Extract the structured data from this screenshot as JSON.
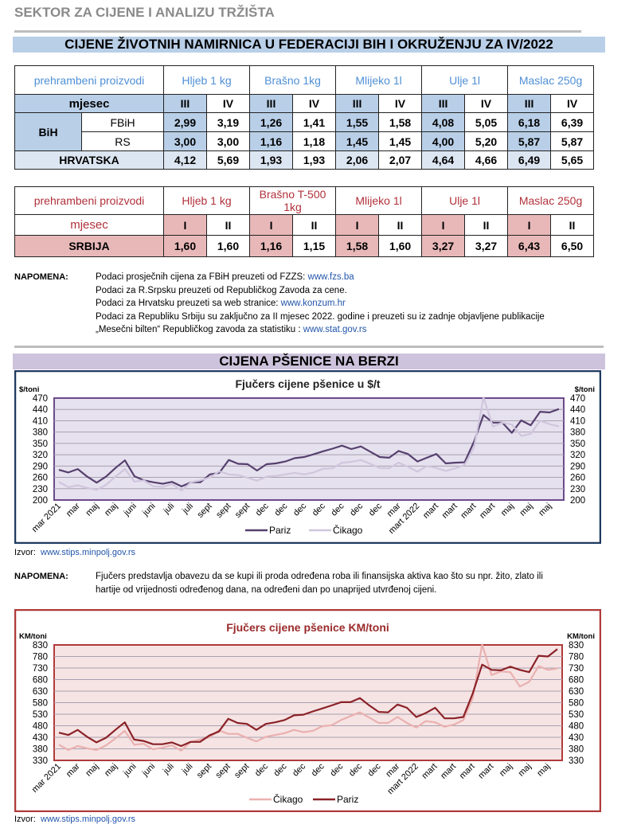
{
  "header": {
    "sector": "SEKTOR ZA CIJENE I ANALIZU TRŽIŠTA",
    "title": "CIJENE ŽIVOTNIH NAMIRNICA U FEDERACIJI BIH I OKRUŽENJU ZA IV/2022"
  },
  "table1": {
    "corner": "prehrambeni proizvodi",
    "products": [
      "Hljeb 1 kg",
      "Brašno 1kg",
      "Mlijeko 1l",
      "Ulje 1l",
      "Maslac 250g"
    ],
    "month_label": "mjesec",
    "months": [
      "III",
      "IV"
    ],
    "bih": "BiH",
    "rows": [
      {
        "label": "FBiH",
        "values": [
          "2,99",
          "3,19",
          "1,26",
          "1,41",
          "1,55",
          "1,58",
          "4,08",
          "5,05",
          "6,18",
          "6,39"
        ]
      },
      {
        "label": "RS",
        "values": [
          "3,00",
          "3,00",
          "1,16",
          "1,18",
          "1,45",
          "1,45",
          "4,00",
          "5,20",
          "5,87",
          "5,87"
        ]
      },
      {
        "label": "HRVATSKA",
        "values": [
          "4,12",
          "5,69",
          "1,93",
          "1,93",
          "2,06",
          "2,07",
          "4,64",
          "4,66",
          "6,49",
          "5,65"
        ]
      }
    ]
  },
  "table2": {
    "corner": "prehrambeni proizvodi",
    "products": [
      "Hljeb 1 kg",
      "Brašno T-500 1kg",
      "Mlijeko  1l",
      "Ulje 1l",
      "Maslac 250g"
    ],
    "month_label": "mjesec",
    "months": [
      "I",
      "II"
    ],
    "row": {
      "label": "SRBIJA",
      "values": [
        "1,60",
        "1,60",
        "1,16",
        "1,15",
        "1,58",
        "1,60",
        "3,27",
        "3,27",
        "6,43",
        "6,50"
      ]
    }
  },
  "note1": {
    "label": "NAPOMENA:",
    "l1": "Podaci prosječnih cijena za FBiH preuzeti od  FZZS: ",
    "l1_link": "www.fzs.ba",
    "l2": "Podaci za R.Srpsku preuzeti od Republičkog Zavoda za cene.",
    "l3": "Podaci za Hrvatsku preuzeti sa web stranice: ",
    "l3_link": "www.konzum.hr",
    "l4": "Podaci za Republiku Srbiju su zaključno za II mjesec  2022. godine i preuzeti su iz zadnje objavljene publikacije",
    "l5": "„Mesečni bilten“  Republičkog zavoda za statistiku : ",
    "l5_link": "www.stat.gov.rs"
  },
  "section2": {
    "title": "CIJENA PŠENICE NA BERZI"
  },
  "source": {
    "label": "Izvor:",
    "link": "www.stips.minpolj.gov.rs"
  },
  "note2": {
    "label": "NAPOMENA:",
    "l1": "Fjučers predstavlja obavezu da se kupi ili proda određena roba ili finansijska aktiva kao što su npr. žito, zlato ili",
    "l2": "hartije od vrijednosti određenog dana, na određeni dan po unaprijed utvrđenoj cijeni."
  },
  "chart_data": [
    {
      "type": "line",
      "title": "Fjučers cijene pšenice u $/t",
      "ylabel": "$/toni",
      "ylim": [
        200,
        470
      ],
      "yticks": [
        200,
        230,
        260,
        290,
        320,
        350,
        380,
        410,
        440,
        470
      ],
      "xticklabels": [
        "mar 2021",
        "mar",
        "maj",
        "maj",
        "juni",
        "juni",
        "juli",
        "juli",
        "sept",
        "sept",
        "sept",
        "dec",
        "dec",
        "dec",
        "dec",
        "dec",
        "dec",
        "dec",
        "mar",
        "mart 2022",
        "mart",
        "mart",
        "mart",
        "mart",
        "maj",
        "maj",
        "maj"
      ],
      "legend": "bottom",
      "colors": {
        "Pariz": "#55406e",
        "Čikago": "#cfc6de",
        "plot_bg": "#e6e1ee",
        "frame": "#6b4a8a",
        "border": "#1f3a60"
      },
      "series": [
        {
          "name": "Pariz",
          "values": [
            280,
            273,
            282,
            262,
            246,
            262,
            285,
            305,
            263,
            252,
            247,
            243,
            248,
            236,
            247,
            247,
            268,
            272,
            306,
            296,
            295,
            278,
            295,
            297,
            302,
            311,
            314,
            321,
            329,
            336,
            344,
            335,
            342,
            328,
            314,
            312,
            330,
            322,
            302,
            312,
            322,
            297,
            299,
            300,
            355,
            425,
            405,
            405,
            378,
            411,
            398,
            434,
            432,
            441
          ]
        },
        {
          "name": "Čikago",
          "values": [
            248,
            234,
            239,
            232,
            227,
            240,
            262,
            282,
            249,
            252,
            236,
            235,
            242,
            225,
            247,
            252,
            260,
            276,
            268,
            266,
            259,
            251,
            262,
            264,
            268,
            272,
            268,
            273,
            283,
            284,
            299,
            301,
            306,
            296,
            285,
            284,
            299,
            288,
            275,
            290,
            285,
            277,
            284,
            293,
            340,
            472,
            395,
            405,
            400,
            370,
            375,
            410,
            401,
            395
          ]
        }
      ]
    },
    {
      "type": "line",
      "title": "Fjučers cijene pšenice KM/toni",
      "ylabel": "KM/toni",
      "ylim": [
        330,
        830
      ],
      "yticks": [
        330,
        380,
        430,
        480,
        530,
        580,
        630,
        680,
        730,
        780,
        830
      ],
      "xticklabels": [
        "mar 2021",
        "mar",
        "maj",
        "maj",
        "juni",
        "juni",
        "juli",
        "juli",
        "sept",
        "sept",
        "sept",
        "dec",
        "dec",
        "dec",
        "dec",
        "dec",
        "dec",
        "dec",
        "mar",
        "mart 2022",
        "mart",
        "mart",
        "mart",
        "mart",
        "maj",
        "maj",
        "maj"
      ],
      "legend": "bottom",
      "colors": {
        "Pariz": "#8b2228",
        "Čikago": "#eab0b0",
        "plot_bg": "#f6e4e4",
        "frame": "#b03a3a",
        "border": "#b03a3a"
      },
      "series": [
        {
          "name": "Čikago",
          "values": [
            398,
            375,
            392,
            382,
            375,
            395,
            425,
            458,
            398,
            402,
            378,
            385,
            396,
            372,
            410,
            420,
            430,
            460,
            445,
            445,
            428,
            412,
            432,
            440,
            448,
            462,
            452,
            458,
            478,
            482,
            505,
            522,
            538,
            515,
            492,
            492,
            518,
            492,
            472,
            500,
            495,
            476,
            485,
            505,
            600,
            832,
            700,
            715,
            712,
            650,
            670,
            738,
            722,
            728
          ]
        },
        {
          "name": "Pariz",
          "values": [
            450,
            440,
            462,
            432,
            408,
            428,
            462,
            495,
            420,
            414,
            400,
            400,
            408,
            392,
            410,
            410,
            438,
            455,
            510,
            492,
            488,
            462,
            488,
            495,
            505,
            525,
            528,
            542,
            555,
            568,
            582,
            582,
            600,
            568,
            540,
            538,
            572,
            558,
            518,
            535,
            558,
            512,
            512,
            518,
            620,
            745,
            722,
            720,
            736,
            722,
            712,
            783,
            780,
            812
          ]
        }
      ]
    }
  ]
}
